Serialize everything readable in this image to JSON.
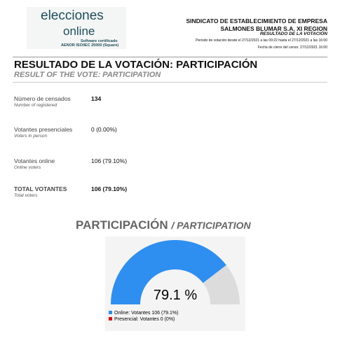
{
  "header": {
    "logo_line1": "elecciones",
    "logo_line2": "online",
    "logo_cert": "Software certificado",
    "logo_std": "AENOR ISO/IEC 25000 (Square)",
    "org_line1": "SINDICATO DE ESTABLECIMIENTO DE  EMPRESA",
    "org_line2": "SALMONES BLUMAR S.A.   XI REGION",
    "doc_title": "RESULTADO DE LA VOTACIÓN",
    "period": "Periodo de votación desde el 27/12/2021 a las 09:22 hasta el 27/12/2021 a las 16:00",
    "census_close": "Fecha de cierre del censo: 27/12/2021 16:00"
  },
  "title": "RESULTADO DE LA VOTACIÓN: PARTICIPACIÓN",
  "subtitle": "RESULT OF THE VOTE: PARTICIPATION",
  "rows": [
    {
      "label": "Número de censados",
      "sublabel": "Number of registered",
      "value": "134"
    },
    {
      "label": "Votantes presenciales",
      "sublabel": "Voters in person",
      "value": "0 (0.00%)"
    },
    {
      "label": "Votantes online",
      "sublabel": "Online voters",
      "value": "106 (79.10%)"
    },
    {
      "label": "TOTAL VOTANTES",
      "sublabel": "Total voters",
      "value": "106 (79.10%)"
    }
  ],
  "chart_data": {
    "type": "gauge",
    "title": "PARTICIPACIÓN",
    "subtitle": "/ PARTICIPATION",
    "ylim": [
      0,
      100
    ],
    "remainder_color": "#dcdcdc",
    "series": [
      {
        "name": "Online: Votantes 106 (79.1%)",
        "color": "#2f8ff0",
        "values": [
          79.1
        ],
        "value_labels": [
          "79.1 %"
        ]
      },
      {
        "name": "Presencial: Votantes 0 (0%)",
        "color": "#e01010",
        "values": [
          0
        ]
      }
    ]
  }
}
